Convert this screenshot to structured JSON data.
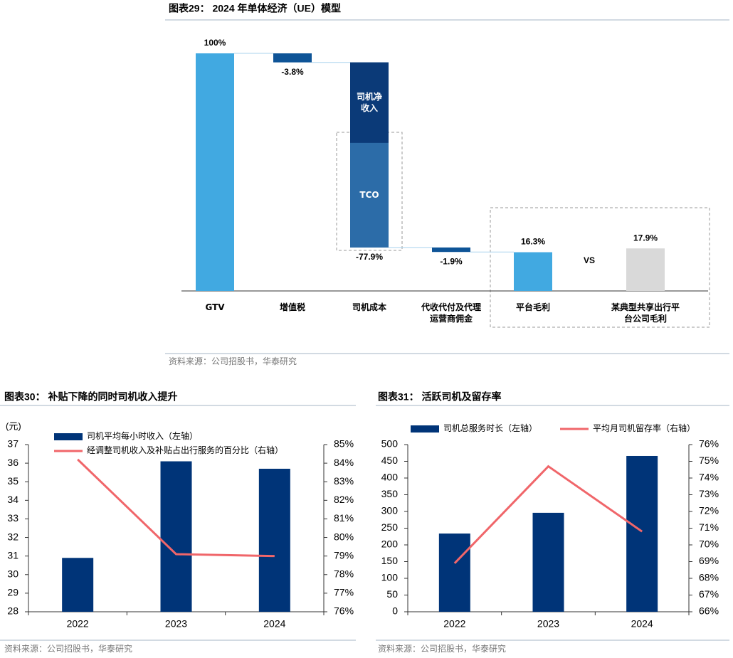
{
  "chart_data": [
    {
      "type": "waterfall",
      "title": "图表29： 2024 年单体经济（UE）模型",
      "categories": [
        "GTV",
        "增值税",
        "司机成本",
        "代收代付及代理运营商佣金",
        "平台毛利",
        "某典型共享出行平台公司毛利"
      ],
      "values": [
        100,
        -3.8,
        -77.9,
        -1.9,
        16.3,
        17.9
      ],
      "value_labels": [
        "100%",
        "-3.8%",
        "-77.9%",
        "-1.9%",
        "16.3%",
        "17.9%"
      ],
      "measure": [
        "absolute",
        "relative",
        "relative",
        "relative",
        "total",
        "absolute"
      ],
      "colors": [
        "#41a9e1",
        "#0e5497",
        "#2c6ca8",
        "#0e5497",
        "#41a9e1",
        "#d9d9d9"
      ],
      "segments": [
        null,
        null,
        [
          {
            "name": "司机净收入",
            "value": 33.9,
            "color": "#0b3a78"
          },
          {
            "name": "TCO",
            "value": 44.0,
            "color": "#2c6ca8"
          }
        ],
        null,
        null,
        null
      ],
      "annotation": "VS",
      "ylim": [
        0,
        100
      ],
      "source": "资料来源：公司招股书，华泰研究"
    },
    {
      "type": "bar",
      "title": "图表30： 补贴下降的同时司机收入提升",
      "y_label": "(元)",
      "categories": [
        "2022",
        "2023",
        "2024"
      ],
      "series": [
        {
          "name": "司机平均每小时收入（左轴）",
          "type": "bar",
          "color": "#003478",
          "values": [
            30.9,
            36.1,
            35.7
          ]
        },
        {
          "name": "经调整司机收入及补贴占出行服务的百分比（右轴）",
          "type": "line",
          "axis": "y2",
          "color": "#f0666a",
          "values": [
            84.2,
            79.1,
            79.0
          ]
        }
      ],
      "ylim": [
        28,
        37
      ],
      "yticks": [
        28,
        29,
        30,
        31,
        32,
        33,
        34,
        35,
        36,
        37
      ],
      "y2lim": [
        76,
        85
      ],
      "y2ticks": [
        {
          "value": 76,
          "label": "76%"
        },
        {
          "value": 77,
          "label": "77%"
        },
        {
          "value": 78,
          "label": "78%"
        },
        {
          "value": 79,
          "label": "79%"
        },
        {
          "value": 80,
          "label": "80%"
        },
        {
          "value": 81,
          "label": "81%"
        },
        {
          "value": 82,
          "label": "82%"
        },
        {
          "value": 83,
          "label": "83%"
        },
        {
          "value": 84,
          "label": "84%"
        },
        {
          "value": 85,
          "label": "85%"
        }
      ],
      "source": "资料来源：公司招股书，华泰研究"
    },
    {
      "type": "bar",
      "title": "图表31： 活跃司机及留存率",
      "categories": [
        "2022",
        "2023",
        "2024"
      ],
      "series": [
        {
          "name": "司机总服务时长（左轴）",
          "type": "bar",
          "color": "#003478",
          "values": [
            234,
            296,
            466
          ]
        },
        {
          "name": "平均月司机留存率（右轴）",
          "type": "line",
          "axis": "y2",
          "color": "#f0666a",
          "values": [
            68.9,
            74.7,
            70.8
          ]
        }
      ],
      "ylim": [
        0,
        500
      ],
      "yticks": [
        0,
        50,
        100,
        150,
        200,
        250,
        300,
        350,
        400,
        450,
        500
      ],
      "y2lim": [
        66,
        76
      ],
      "y2ticks": [
        {
          "value": 66,
          "label": "66%"
        },
        {
          "value": 67,
          "label": "67%"
        },
        {
          "value": 68,
          "label": "68%"
        },
        {
          "value": 69,
          "label": "69%"
        },
        {
          "value": 70,
          "label": "70%"
        },
        {
          "value": 71,
          "label": "71%"
        },
        {
          "value": 72,
          "label": "72%"
        },
        {
          "value": 73,
          "label": "73%"
        },
        {
          "value": 74,
          "label": "74%"
        },
        {
          "value": 75,
          "label": "75%"
        },
        {
          "value": 76,
          "label": "76%"
        }
      ],
      "source": "资料来源：公司招股书，华泰研究"
    }
  ]
}
